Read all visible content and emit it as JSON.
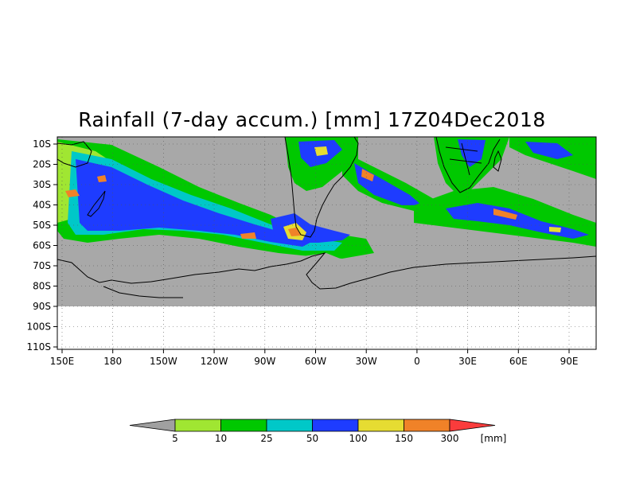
{
  "title": "Rainfall (7-day accum.) [mm] 17Z04Dec2018",
  "lat_labels": [
    "10S",
    "20S",
    "30S",
    "40S",
    "50S",
    "60S",
    "70S",
    "80S",
    "90S",
    "100S",
    "110S"
  ],
  "lon_labels": [
    "150E",
    "180",
    "150W",
    "120W",
    "90W",
    "60W",
    "30W",
    "0",
    "30E",
    "60E",
    "90E"
  ],
  "colorbar": {
    "unit": "[mm]",
    "thresholds": [
      "5",
      "10",
      "25",
      "50",
      "100",
      "150",
      "300"
    ],
    "colors": [
      "#a0a0a0",
      "#a0e632",
      "#00c800",
      "#00c8c8",
      "#1e3cff",
      "#e6dc32",
      "#f08228",
      "#fa3c3c"
    ]
  },
  "colors": {
    "no_rain": "#a8a8a8",
    "coast": "#000000"
  }
}
